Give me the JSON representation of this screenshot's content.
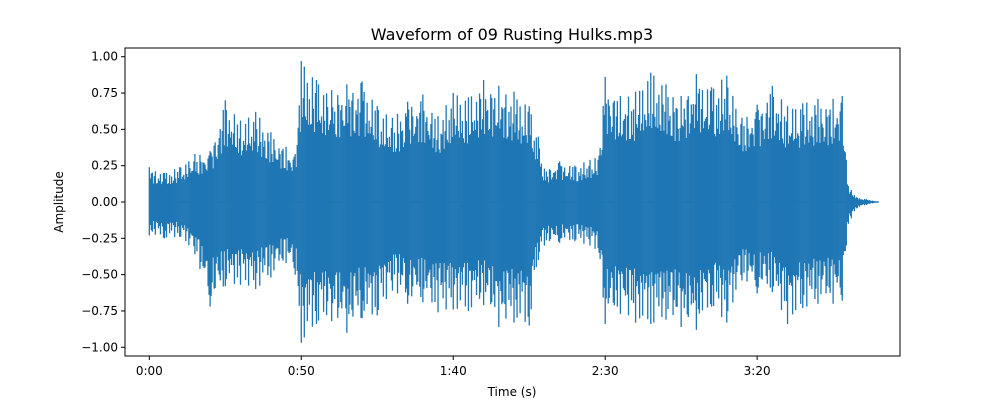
{
  "chart_data": {
    "type": "line",
    "title": "Waveform of 09 Rusting Hulks.mp3",
    "xlabel": "Time (s)",
    "ylabel": "Amplitude",
    "xlim": [
      -8,
      247
    ],
    "ylim": [
      -1.06,
      1.06
    ],
    "x_ticks": [
      {
        "value": 0,
        "label": "0:00"
      },
      {
        "value": 50,
        "label": "0:50"
      },
      {
        "value": 100,
        "label": "1:40"
      },
      {
        "value": 150,
        "label": "2:30"
      },
      {
        "value": 200,
        "label": "3:20"
      }
    ],
    "y_ticks": [
      {
        "value": 1.0,
        "label": "1.00"
      },
      {
        "value": 0.75,
        "label": "0.75"
      },
      {
        "value": 0.5,
        "label": "0.50"
      },
      {
        "value": 0.25,
        "label": "0.25"
      },
      {
        "value": 0.0,
        "label": "0.00"
      },
      {
        "value": -0.25,
        "label": "−0.25"
      },
      {
        "value": -0.5,
        "label": "−0.50"
      },
      {
        "value": -0.75,
        "label": "−0.75"
      },
      {
        "value": -1.0,
        "label": "−1.00"
      }
    ],
    "grid": false,
    "legend": "none",
    "color": "#1f77b4",
    "series": [
      {
        "x": [
          0,
          5,
          10,
          15,
          20,
          25,
          30,
          35,
          40,
          45,
          48,
          50,
          55,
          60,
          65,
          70,
          75,
          80,
          85,
          90,
          95,
          100,
          105,
          110,
          115,
          120,
          125,
          128,
          130,
          135,
          140,
          145,
          148,
          150,
          155,
          160,
          165,
          170,
          175,
          180,
          185,
          190,
          195,
          200,
          205,
          210,
          215,
          220,
          225,
          228,
          230,
          233,
          236,
          240
        ],
        "y_max": [
          0.24,
          0.2,
          0.24,
          0.33,
          0.35,
          0.7,
          0.56,
          0.62,
          0.48,
          0.38,
          0.33,
          0.97,
          0.84,
          0.77,
          0.81,
          0.83,
          0.66,
          0.58,
          0.69,
          0.74,
          0.59,
          0.75,
          0.72,
          0.84,
          0.8,
          0.76,
          0.66,
          0.45,
          0.23,
          0.28,
          0.25,
          0.29,
          0.32,
          0.86,
          0.73,
          0.76,
          0.89,
          0.81,
          0.73,
          0.88,
          0.79,
          0.87,
          0.58,
          0.67,
          0.8,
          0.66,
          0.68,
          0.71,
          0.71,
          0.73,
          0.11,
          0.03,
          0.02,
          0.0
        ],
        "y_min": [
          -0.23,
          -0.25,
          -0.24,
          -0.36,
          -0.72,
          -0.58,
          -0.57,
          -0.6,
          -0.52,
          -0.42,
          -0.5,
          -0.97,
          -0.84,
          -0.82,
          -0.9,
          -0.8,
          -0.78,
          -0.61,
          -0.7,
          -0.69,
          -0.76,
          -0.74,
          -0.75,
          -0.71,
          -0.86,
          -0.83,
          -0.85,
          -0.4,
          -0.3,
          -0.28,
          -0.27,
          -0.3,
          -0.35,
          -0.84,
          -0.77,
          -0.83,
          -0.84,
          -0.81,
          -0.86,
          -0.88,
          -0.72,
          -0.83,
          -0.54,
          -0.63,
          -0.62,
          -0.84,
          -0.73,
          -0.7,
          -0.7,
          -0.68,
          -0.15,
          -0.04,
          -0.02,
          0.0
        ]
      }
    ]
  }
}
